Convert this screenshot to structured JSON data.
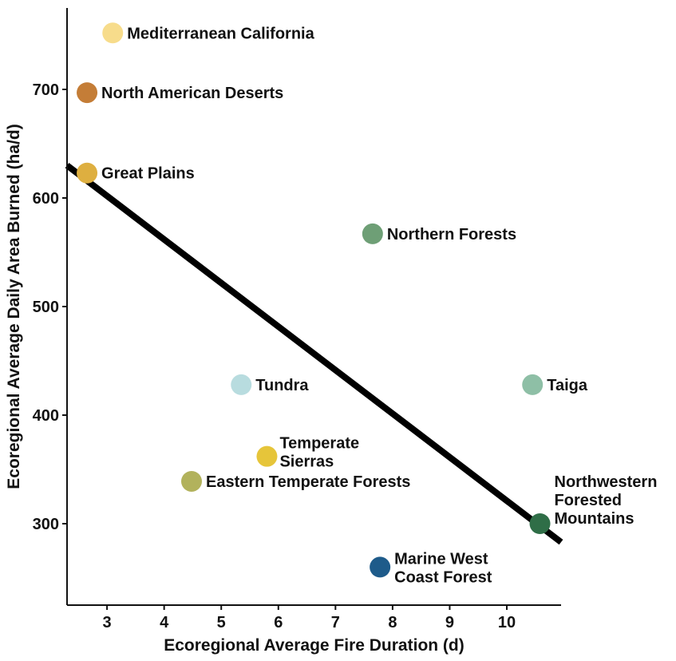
{
  "chart_data": {
    "type": "scatter",
    "title": "",
    "xlabel": "Ecoregional Average Fire Duration (d)",
    "ylabel": "Ecoregional Average Daily Area Burned (ha/d)",
    "xlim": [
      2.3,
      10.95
    ],
    "ylim": [
      225,
      775
    ],
    "xticks": [
      3,
      4,
      5,
      6,
      7,
      8,
      9,
      10
    ],
    "yticks": [
      300,
      400,
      500,
      600,
      700
    ],
    "grid": false,
    "legend": "none",
    "points": [
      {
        "label": [
          "Mediterranean California"
        ],
        "x": 3.1,
        "y": 752,
        "color": "#f7dc8b",
        "anchor": "right"
      },
      {
        "label": [
          "North American Deserts"
        ],
        "x": 2.65,
        "y": 697,
        "color": "#c47d37",
        "anchor": "right"
      },
      {
        "label": [
          "Great Plains"
        ],
        "x": 2.65,
        "y": 623,
        "color": "#deaf40",
        "anchor": "right"
      },
      {
        "label": [
          "Northern Forests"
        ],
        "x": 7.65,
        "y": 567,
        "color": "#6e9f76",
        "anchor": "right"
      },
      {
        "label": [
          "Tundra"
        ],
        "x": 5.35,
        "y": 428,
        "color": "#b8dcdf",
        "anchor": "right"
      },
      {
        "label": [
          "Taiga"
        ],
        "x": 10.45,
        "y": 428,
        "color": "#8ebfa6",
        "anchor": "right"
      },
      {
        "label": [
          "Temperate",
          "Sierras"
        ],
        "x": 5.8,
        "y": 362,
        "color": "#e6c53a",
        "anchor": "right-up"
      },
      {
        "label": [
          "Eastern Temperate Forests"
        ],
        "x": 4.48,
        "y": 339,
        "color": "#b2b25c",
        "anchor": "right"
      },
      {
        "label": [
          "Northwestern",
          "Forested",
          "Mountains"
        ],
        "x": 10.58,
        "y": 300,
        "color": "#2f6e47",
        "anchor": "up-right"
      },
      {
        "label": [
          "Marine West",
          "Coast Forest"
        ],
        "x": 7.78,
        "y": 260,
        "color": "#1e5b8a",
        "anchor": "right"
      }
    ],
    "trendline": {
      "x": [
        2.3,
        10.95
      ],
      "y": [
        630,
        283
      ],
      "color": "#000000"
    }
  }
}
